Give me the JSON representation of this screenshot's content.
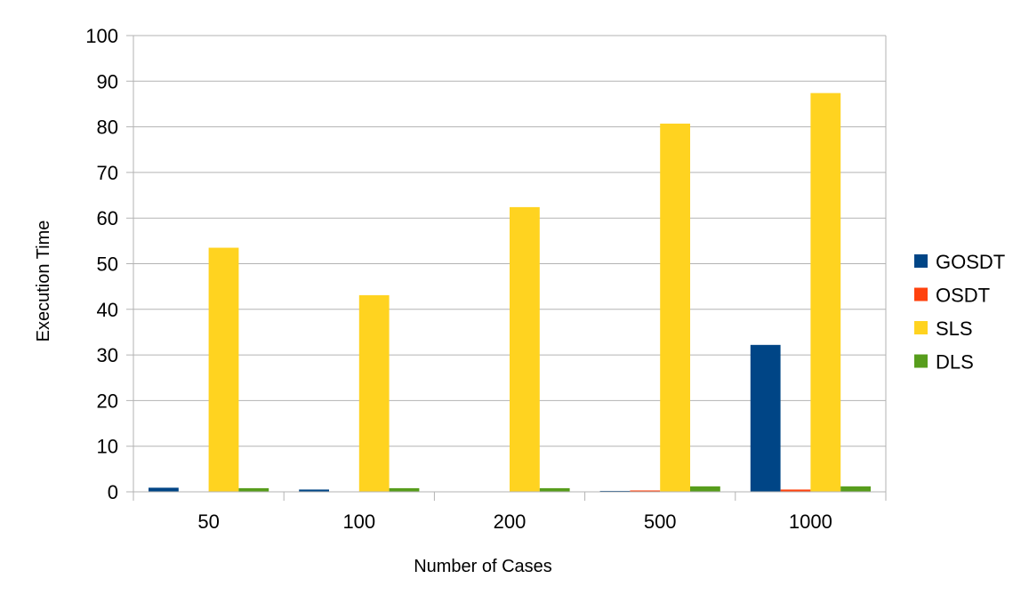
{
  "chart_data": {
    "type": "bar",
    "title": "",
    "xlabel": "Number of Cases",
    "ylabel": "Execution Time",
    "categories": [
      "50",
      "100",
      "200",
      "500",
      "1000"
    ],
    "series": [
      {
        "name": "GOSDT",
        "color": "#004586",
        "values": [
          0.9,
          0.5,
          0.05,
          0.2,
          32.2
        ]
      },
      {
        "name": "OSDT",
        "color": "#ff420e",
        "values": [
          0.05,
          0.05,
          0.05,
          0.3,
          0.5
        ]
      },
      {
        "name": "SLS",
        "color": "#ffd320",
        "values": [
          53.5,
          43.1,
          62.4,
          80.7,
          87.4
        ]
      },
      {
        "name": "DLS",
        "color": "#579d1c",
        "values": [
          0.8,
          0.8,
          0.8,
          1.2,
          1.2
        ]
      }
    ],
    "ylim": [
      0,
      100
    ],
    "yticks": [
      "0",
      "10",
      "20",
      "30",
      "40",
      "50",
      "60",
      "70",
      "80",
      "90",
      "100"
    ],
    "grid": true,
    "legend_position": "right"
  }
}
